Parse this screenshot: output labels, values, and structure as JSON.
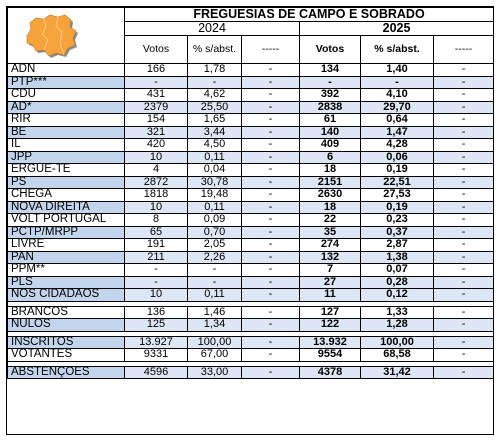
{
  "title": "FREGUESIAS DE CAMPO E SOBRADO",
  "year_left": "2024",
  "year_right": "2025",
  "headers": {
    "votos": "Votos",
    "pct_left": "% s/abst.",
    "pct_right": "% s/abst.",
    "dash": "-----"
  },
  "map_icon": "parish-map-icon",
  "map_colors": {
    "fill": "#f5a33a",
    "edge": "#c07a20",
    "shadow": "#8a8a8a"
  },
  "parties": [
    {
      "name": "ADN",
      "v24": "166",
      "p24": "1,78",
      "d24": "-",
      "v25": "134",
      "p25": "1,40",
      "d25": "-",
      "blue": false
    },
    {
      "name": "PTP***",
      "v24": "-",
      "p24": "-",
      "d24": "-",
      "v25": "-",
      "p25": "-",
      "d25": "-",
      "blue": true
    },
    {
      "name": "CDU",
      "v24": "431",
      "p24": "4,62",
      "d24": "-",
      "v25": "392",
      "p25": "4,10",
      "d25": "-",
      "blue": false
    },
    {
      "name": "AD*",
      "v24": "2379",
      "p24": "25,50",
      "d24": "-",
      "v25": "2838",
      "p25": "29,70",
      "d25": "-",
      "blue": true
    },
    {
      "name": "RIR",
      "v24": "154",
      "p24": "1,65",
      "d24": "-",
      "v25": "61",
      "p25": "0,64",
      "d25": "-",
      "blue": false
    },
    {
      "name": "BE",
      "v24": "321",
      "p24": "3,44",
      "d24": "-",
      "v25": "140",
      "p25": "1,47",
      "d25": "-",
      "blue": true
    },
    {
      "name": "IL",
      "v24": "420",
      "p24": "4,50",
      "d24": "-",
      "v25": "409",
      "p25": "4,28",
      "d25": "-",
      "blue": false
    },
    {
      "name": "JPP",
      "v24": "10",
      "p24": "0,11",
      "d24": "-",
      "v25": "6",
      "p25": "0,06",
      "d25": "-",
      "blue": true
    },
    {
      "name": "ERGUE-TE",
      "v24": "4",
      "p24": "0,04",
      "d24": "-",
      "v25": "18",
      "p25": "0,19",
      "d25": "-",
      "blue": false
    },
    {
      "name": "PS",
      "v24": "2872",
      "p24": "30,78",
      "d24": "-",
      "v25": "2151",
      "p25": "22,51",
      "d25": "-",
      "blue": true
    },
    {
      "name": "CHEGA",
      "v24": "1818",
      "p24": "19,48",
      "d24": "-",
      "v25": "2630",
      "p25": "27,53",
      "d25": "-",
      "blue": false
    },
    {
      "name": "NOVA DIREITA",
      "v24": "10",
      "p24": "0,11",
      "d24": "-",
      "v25": "18",
      "p25": "0,19",
      "d25": "-",
      "blue": true
    },
    {
      "name": "VOLT PORTUGAL",
      "v24": "8",
      "p24": "0,09",
      "d24": "-",
      "v25": "22",
      "p25": "0,23",
      "d25": "-",
      "blue": false
    },
    {
      "name": "PCTP/MRPP",
      "v24": "65",
      "p24": "0,70",
      "d24": "-",
      "v25": "35",
      "p25": "0,37",
      "d25": "-",
      "blue": true
    },
    {
      "name": "LIVRE",
      "v24": "191",
      "p24": "2,05",
      "d24": "-",
      "v25": "274",
      "p25": "2,87",
      "d25": "-",
      "blue": false
    },
    {
      "name": "PAN",
      "v24": "211",
      "p24": "2,26",
      "d24": "-",
      "v25": "132",
      "p25": "1,38",
      "d25": "-",
      "blue": true
    },
    {
      "name": "PPM**",
      "v24": "-",
      "p24": "-",
      "d24": "-",
      "v25": "7",
      "p25": "0,07",
      "d25": "-",
      "blue": false
    },
    {
      "name": "PLS",
      "v24": "-",
      "p24": "-",
      "d24": "-",
      "v25": "27",
      "p25": "0,28",
      "d25": "-",
      "blue": true
    },
    {
      "name": "NOS CIDADÃOS",
      "v24": "10",
      "p24": "0,11",
      "d24": "-",
      "v25": "11",
      "p25": "0,12",
      "d25": "-",
      "blue": true
    }
  ],
  "blank_null": [
    {
      "name": "BRANCOS",
      "v24": "136",
      "p24": "1,46",
      "d24": "-",
      "v25": "127",
      "p25": "1,33",
      "d25": "-",
      "blue": false
    },
    {
      "name": "NULOS",
      "v24": "125",
      "p24": "1,34",
      "d24": "-",
      "v25": "122",
      "p25": "1,28",
      "d25": "-",
      "blue": true
    }
  ],
  "totals": [
    {
      "name": "INSCRITOS",
      "v24": "13.927",
      "p24": "100,00",
      "d24": "-",
      "v25": "13.932",
      "p25": "100,00",
      "d25": "-",
      "blue": true
    },
    {
      "name": "VOTANTES",
      "v24": "9331",
      "p24": "67,00",
      "d24": "-",
      "v25": "9554",
      "p25": "68,58",
      "d25": "-",
      "blue": false
    }
  ],
  "abstention": [
    {
      "name": "ABSTENÇÕES",
      "v24": "4596",
      "p24": "33,00",
      "d24": "-",
      "v25": "4378",
      "p25": "31,42",
      "d25": "-",
      "blue": true
    }
  ]
}
